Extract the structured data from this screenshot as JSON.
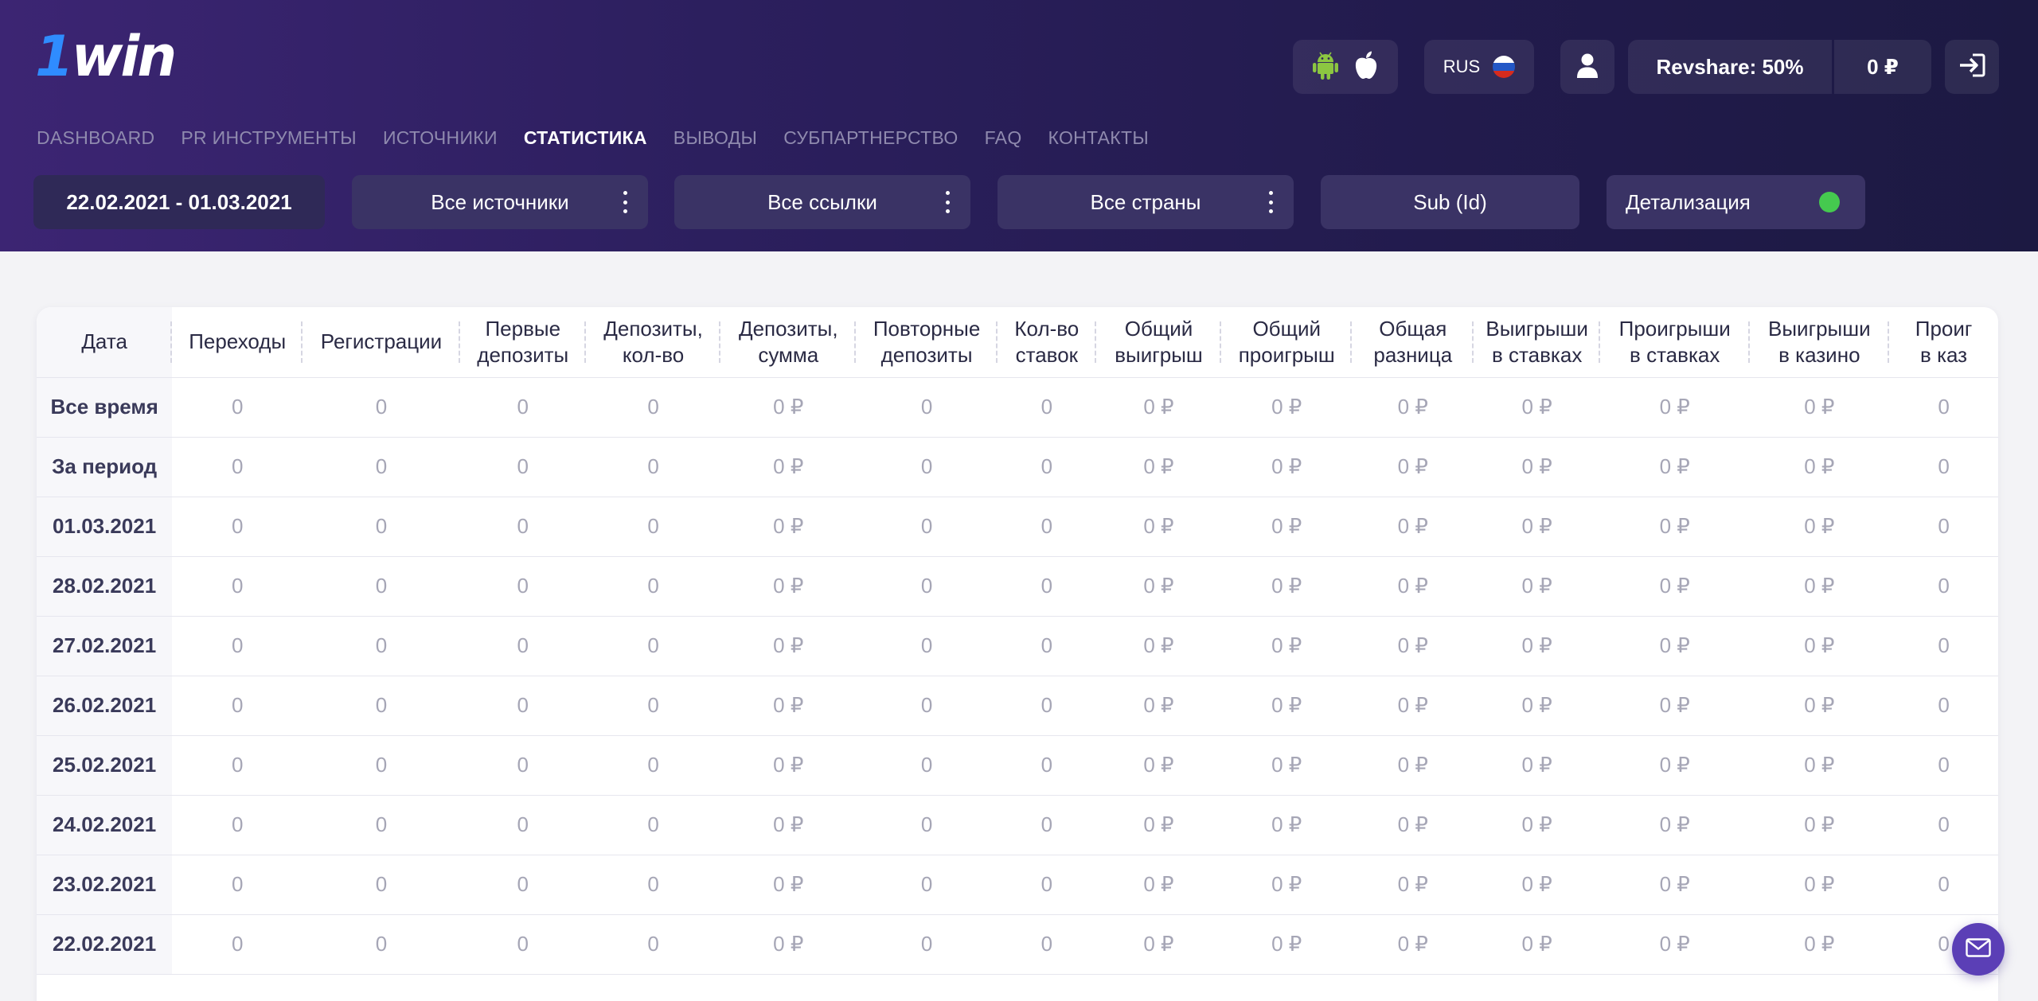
{
  "brand": {
    "logo_one": "1",
    "logo_rest": "win"
  },
  "header": {
    "language": "RUS",
    "revshare": "Revshare: 50%",
    "balance": "0 ₽",
    "app_icons": [
      "android-icon",
      "apple-icon"
    ]
  },
  "nav": {
    "items": [
      {
        "label": "DASHBOARD",
        "active": false
      },
      {
        "label": "PR ИНСТРУМЕНТЫ",
        "active": false
      },
      {
        "label": "ИСТОЧНИКИ",
        "active": false
      },
      {
        "label": "СТАТИСТИКА",
        "active": true
      },
      {
        "label": "ВЫВОДЫ",
        "active": false
      },
      {
        "label": "СУБПАРТНЕРСТВО",
        "active": false
      },
      {
        "label": "FAQ",
        "active": false
      },
      {
        "label": "КОНТАКТЫ",
        "active": false
      }
    ]
  },
  "filters": {
    "date_range": "22.02.2021 - 01.03.2021",
    "sources": "Все источники",
    "links": "Все ссылки",
    "countries": "Все страны",
    "sub_id": "Sub (Id)",
    "detail": "Детализация",
    "detail_status_color": "#45c94f"
  },
  "table": {
    "columns": [
      {
        "label": "Дата"
      },
      {
        "label": "Переходы"
      },
      {
        "label": "Регистрации"
      },
      {
        "label": "Первые\nдепозиты"
      },
      {
        "label": "Депозиты,\nкол-во"
      },
      {
        "label": "Депозиты,\nсумма"
      },
      {
        "label": "Повторные\nдепозиты"
      },
      {
        "label": "Кол-во\nставок"
      },
      {
        "label": "Общий\nвыигрыш"
      },
      {
        "label": "Общий\nпроигрыш"
      },
      {
        "label": "Общая\nразница"
      },
      {
        "label": "Выигрыши\nв ставках"
      },
      {
        "label": "Проигрыши\nв ставках"
      },
      {
        "label": "Выигрыши\nв казино"
      },
      {
        "label": "Проиг\nв каз"
      }
    ],
    "rows": [
      [
        "Все время",
        "0",
        "0",
        "0",
        "0",
        "0 ₽",
        "0",
        "0",
        "0 ₽",
        "0 ₽",
        "0 ₽",
        "0 ₽",
        "0 ₽",
        "0 ₽",
        "0"
      ],
      [
        "За период",
        "0",
        "0",
        "0",
        "0",
        "0 ₽",
        "0",
        "0",
        "0 ₽",
        "0 ₽",
        "0 ₽",
        "0 ₽",
        "0 ₽",
        "0 ₽",
        "0"
      ],
      [
        "01.03.2021",
        "0",
        "0",
        "0",
        "0",
        "0 ₽",
        "0",
        "0",
        "0 ₽",
        "0 ₽",
        "0 ₽",
        "0 ₽",
        "0 ₽",
        "0 ₽",
        "0"
      ],
      [
        "28.02.2021",
        "0",
        "0",
        "0",
        "0",
        "0 ₽",
        "0",
        "0",
        "0 ₽",
        "0 ₽",
        "0 ₽",
        "0 ₽",
        "0 ₽",
        "0 ₽",
        "0"
      ],
      [
        "27.02.2021",
        "0",
        "0",
        "0",
        "0",
        "0 ₽",
        "0",
        "0",
        "0 ₽",
        "0 ₽",
        "0 ₽",
        "0 ₽",
        "0 ₽",
        "0 ₽",
        "0"
      ],
      [
        "26.02.2021",
        "0",
        "0",
        "0",
        "0",
        "0 ₽",
        "0",
        "0",
        "0 ₽",
        "0 ₽",
        "0 ₽",
        "0 ₽",
        "0 ₽",
        "0 ₽",
        "0"
      ],
      [
        "25.02.2021",
        "0",
        "0",
        "0",
        "0",
        "0 ₽",
        "0",
        "0",
        "0 ₽",
        "0 ₽",
        "0 ₽",
        "0 ₽",
        "0 ₽",
        "0 ₽",
        "0"
      ],
      [
        "24.02.2021",
        "0",
        "0",
        "0",
        "0",
        "0 ₽",
        "0",
        "0",
        "0 ₽",
        "0 ₽",
        "0 ₽",
        "0 ₽",
        "0 ₽",
        "0 ₽",
        "0"
      ],
      [
        "23.02.2021",
        "0",
        "0",
        "0",
        "0",
        "0 ₽",
        "0",
        "0",
        "0 ₽",
        "0 ₽",
        "0 ₽",
        "0 ₽",
        "0 ₽",
        "0 ₽",
        "0"
      ],
      [
        "22.02.2021",
        "0",
        "0",
        "0",
        "0",
        "0 ₽",
        "0",
        "0",
        "0 ₽",
        "0 ₽",
        "0 ₽",
        "0 ₽",
        "0 ₽",
        "0 ₽",
        "0"
      ]
    ]
  },
  "chat": {
    "icon": "mail-icon"
  }
}
